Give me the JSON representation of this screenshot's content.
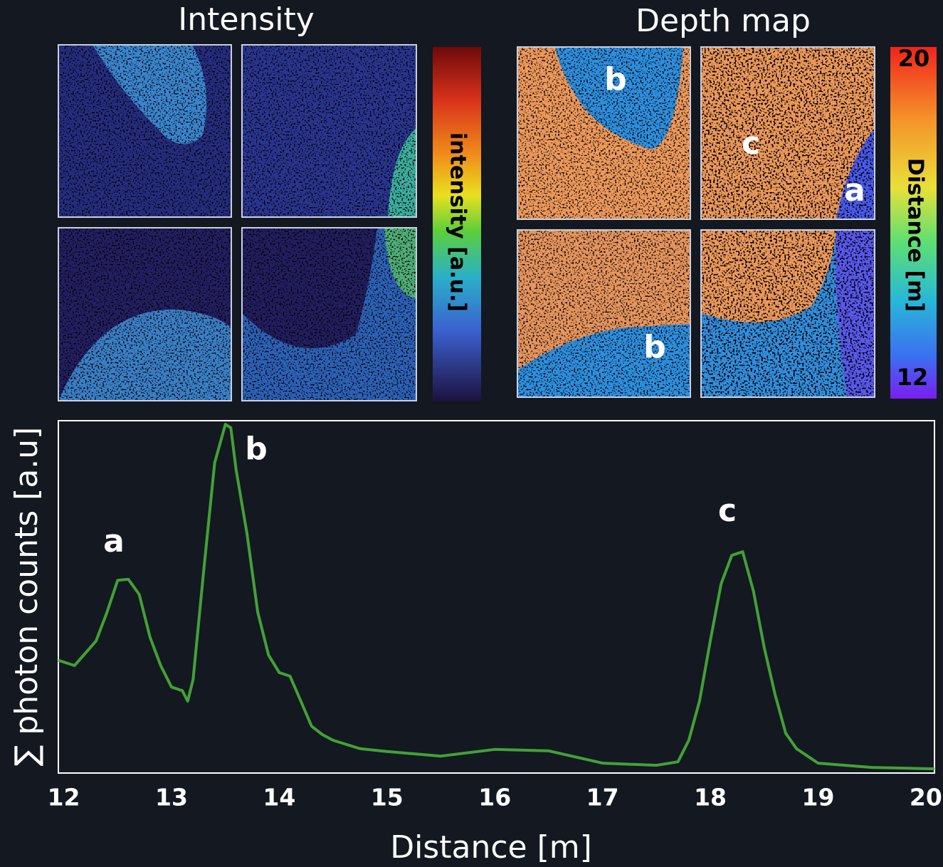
{
  "intensity": {
    "title": "Intensity",
    "colorbar_label": "intensity [a.u.]"
  },
  "depth_map": {
    "title": "Depth map",
    "colorbar_label": "Distance [m]",
    "colorbar_lim": [
      12,
      20
    ],
    "labels": [
      "b",
      "c",
      "a",
      "b"
    ]
  },
  "chart_data": {
    "type": "line",
    "x_label": "Distance [m]",
    "y_label": "∑ photon counts [a.u]",
    "annotations": [
      "a",
      "b",
      "c"
    ],
    "xlim": [
      11.95,
      20.08
    ],
    "ylim": [
      0,
      1
    ],
    "xticks": [
      12,
      13,
      14,
      15,
      16,
      17,
      18,
      19,
      20
    ],
    "grid": false,
    "series": [
      {
        "color": "#41a235",
        "x": [
          11.95,
          12.1,
          12.2,
          12.3,
          12.4,
          12.5,
          12.6,
          12.7,
          12.8,
          12.9,
          13.0,
          13.1,
          13.15,
          13.2,
          13.3,
          13.4,
          13.5,
          13.55,
          13.6,
          13.7,
          13.8,
          13.9,
          14.0,
          14.1,
          14.2,
          14.3,
          14.4,
          14.5,
          14.75,
          15.0,
          15.5,
          16.0,
          16.5,
          17.0,
          17.5,
          17.7,
          17.8,
          17.9,
          18.0,
          18.1,
          18.2,
          18.3,
          18.4,
          18.5,
          18.6,
          18.7,
          18.8,
          19.0,
          19.5,
          20.08
        ],
        "values": [
          0.32,
          0.305,
          0.34,
          0.375,
          0.455,
          0.547,
          0.55,
          0.507,
          0.386,
          0.305,
          0.244,
          0.234,
          0.204,
          0.265,
          0.578,
          0.88,
          0.99,
          0.98,
          0.86,
          0.68,
          0.457,
          0.335,
          0.285,
          0.275,
          0.204,
          0.133,
          0.109,
          0.093,
          0.069,
          0.061,
          0.048,
          0.067,
          0.063,
          0.028,
          0.022,
          0.032,
          0.093,
          0.204,
          0.376,
          0.537,
          0.618,
          0.628,
          0.517,
          0.356,
          0.224,
          0.113,
          0.069,
          0.028,
          0.016,
          0.012
        ]
      }
    ]
  }
}
